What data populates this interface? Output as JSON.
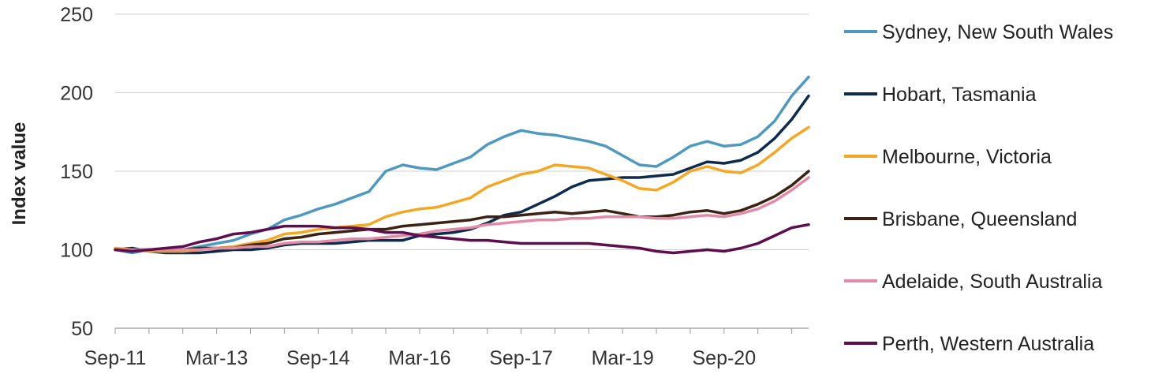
{
  "chart_data": {
    "type": "line",
    "title": "",
    "xlabel": "",
    "ylabel": "Index value",
    "ylim": [
      50,
      250
    ],
    "yticks": [
      "50",
      "100",
      "150",
      "200",
      "250"
    ],
    "x_start": "Sep-11",
    "x_end": "Jun-21",
    "step_months": 3,
    "xticks": [
      "Sep-11",
      "Mar-13",
      "Sep-14",
      "Mar-16",
      "Sep-17",
      "Mar-19",
      "Sep-20"
    ],
    "grid": true,
    "legend_position": "right",
    "series": [
      {
        "name": "Sydney, New South Wales",
        "color": "#4f98c0",
        "values": [
          100,
          98,
          100,
          99,
          100,
          102,
          104,
          106,
          110,
          113,
          119,
          122,
          126,
          129,
          133,
          137,
          150,
          154,
          152,
          151,
          155,
          159,
          167,
          172,
          176,
          174,
          173,
          171,
          169,
          166,
          160,
          154,
          153,
          159,
          166,
          169,
          166,
          167,
          172,
          182,
          198,
          210
        ]
      },
      {
        "name": "Hobart, Tasmania",
        "color": "#0c2b4e",
        "values": [
          100,
          101,
          99,
          98,
          98,
          98,
          99,
          100,
          100,
          101,
          103,
          104,
          104,
          104,
          105,
          106,
          106,
          106,
          109,
          110,
          111,
          113,
          117,
          122,
          124,
          129,
          134,
          140,
          144,
          145,
          146,
          146,
          147,
          148,
          152,
          156,
          155,
          157,
          162,
          171,
          183,
          198
        ]
      },
      {
        "name": "Melbourne, Victoria",
        "color": "#f5a623",
        "values": [
          101,
          100,
          99,
          99,
          99,
          100,
          101,
          102,
          104,
          106,
          110,
          111,
          113,
          114,
          115,
          116,
          121,
          124,
          126,
          127,
          130,
          133,
          140,
          144,
          148,
          150,
          154,
          153,
          152,
          148,
          144,
          139,
          138,
          143,
          150,
          153,
          150,
          149,
          154,
          162,
          171,
          178
        ]
      },
      {
        "name": "Brisbane, Queensland",
        "color": "#3b2212",
        "values": [
          100,
          100,
          100,
          100,
          100,
          101,
          101,
          101,
          103,
          104,
          107,
          108,
          110,
          111,
          112,
          113,
          113,
          115,
          116,
          117,
          118,
          119,
          121,
          121,
          122,
          123,
          124,
          123,
          124,
          125,
          123,
          121,
          121,
          122,
          124,
          125,
          123,
          125,
          129,
          134,
          141,
          150
        ]
      },
      {
        "name": "Adelaide, South Australia",
        "color": "#e38aa6",
        "values": [
          100,
          100,
          100,
          100,
          100,
          100,
          101,
          101,
          102,
          102,
          104,
          105,
          105,
          106,
          107,
          107,
          108,
          109,
          110,
          112,
          113,
          114,
          116,
          117,
          118,
          119,
          119,
          120,
          120,
          121,
          121,
          121,
          120,
          120,
          121,
          122,
          121,
          123,
          126,
          131,
          138,
          146
        ]
      },
      {
        "name": "Perth, Western Australia",
        "color": "#5e0d4f",
        "values": [
          100,
          99,
          100,
          101,
          102,
          105,
          107,
          110,
          111,
          113,
          115,
          115,
          115,
          114,
          114,
          113,
          111,
          111,
          109,
          108,
          107,
          106,
          106,
          105,
          104,
          104,
          104,
          104,
          104,
          103,
          102,
          101,
          99,
          98,
          99,
          100,
          99,
          101,
          104,
          109,
          114,
          116
        ]
      }
    ]
  }
}
